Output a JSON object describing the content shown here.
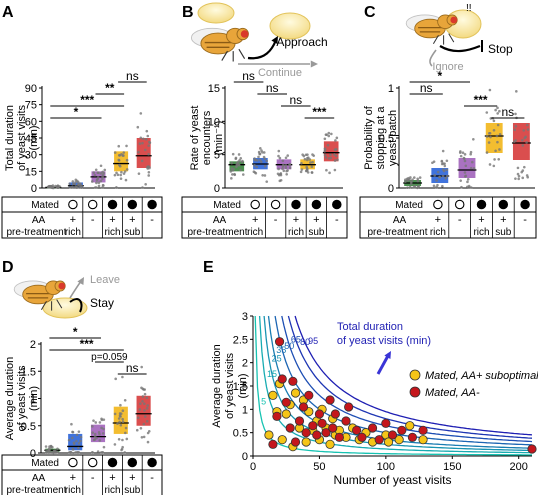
{
  "panel_labels": [
    "A",
    "B",
    "C",
    "D",
    "E"
  ],
  "panels": {
    "A": {
      "ylabel": [
        "Total duration",
        "of yeast visits",
        "(min)"
      ],
      "ylim": [
        0,
        90
      ],
      "yticks": [
        0,
        15,
        30,
        45,
        60,
        75,
        90
      ],
      "sig": [
        {
          "label": "*",
          "from": 0,
          "to": 2
        },
        {
          "label": "***",
          "from": 0,
          "to": 3
        },
        {
          "label": "**",
          "from": 2,
          "to": 3
        },
        {
          "label": "ns",
          "from": 3,
          "to": 4
        }
      ]
    },
    "B": {
      "ylabel": [
        "Rate of yeast",
        "encounters",
        "(min⁻¹)"
      ],
      "ylim": [
        0,
        15
      ],
      "yticks": [
        0,
        5,
        10,
        15
      ],
      "sig": [
        {
          "label": "ns",
          "from": 0,
          "to": 1
        },
        {
          "label": "ns",
          "from": 1,
          "to": 2
        },
        {
          "label": "ns",
          "from": 2,
          "to": 3
        },
        {
          "label": "***",
          "from": 3,
          "to": 4
        }
      ],
      "cartoon": {
        "approach": "Approach",
        "continue": "Continue"
      }
    },
    "C": {
      "ylabel": [
        "Probability of",
        "stopping at a",
        "yeast patch"
      ],
      "ylim": [
        0,
        1
      ],
      "yticks": [
        0,
        0.5,
        1
      ],
      "ytick_labels": [
        "0",
        "0.5",
        "1"
      ],
      "sig": [
        {
          "label": "ns",
          "from": 0,
          "to": 1
        },
        {
          "label": "*",
          "from": 0,
          "to": 2
        },
        {
          "label": "***",
          "from": 2,
          "to": 3
        },
        {
          "label": "ns",
          "from": 3,
          "to": 4
        }
      ],
      "cartoon": {
        "stop": "Stop",
        "ignore": "Ignore",
        "exclaim": "!!"
      }
    },
    "D": {
      "ylabel": [
        "Average duration",
        "of yeast visits",
        "(min)"
      ],
      "ylim": [
        0,
        2
      ],
      "yticks": [
        0,
        0.5,
        1,
        1.5,
        2
      ],
      "ytick_labels": [
        "0",
        "0.5",
        "1",
        "1.5",
        "2"
      ],
      "sig": [
        {
          "label": "*",
          "from": 0,
          "to": 2
        },
        {
          "label": "***",
          "from": 0,
          "to": 3
        },
        {
          "label": "p=0.059",
          "from": 2,
          "to": 3
        },
        {
          "label": "ns",
          "from": 3,
          "to": 4
        }
      ],
      "cartoon": {
        "leave": "Leave",
        "stay": "Stay"
      }
    },
    "E": {
      "ylabel": [
        "Average duration",
        "of yeast visits",
        "(min)"
      ],
      "xlabel": "Number of yeast visits",
      "iso_title": [
        "Total duration",
        "of yeast visits (min)"
      ],
      "iso_labels": [
        "5",
        "15",
        "25",
        "35",
        "50",
        "65",
        "80",
        "95"
      ]
    }
  },
  "condition_table": {
    "row1": "Mated",
    "row2": [
      "AA",
      "pre-treatment"
    ],
    "mated": [
      "empty",
      "empty",
      "filled",
      "filled",
      "filled"
    ],
    "aa_symbol": [
      "+",
      "-",
      "+",
      "+",
      "-"
    ],
    "aa_label": [
      "rich",
      "",
      "rich",
      "sub",
      ""
    ]
  },
  "colors": {
    "group": [
      "#2e7d32",
      "#1e5bd6",
      "#9b59b6",
      "#f1b10c",
      "#d32f2f"
    ],
    "iso_low": "#17c3b2",
    "iso_high": "#1f1fb3",
    "legend_yellow": "#f5c518",
    "legend_red": "#c4161c"
  },
  "chart_data": [
    {
      "type": "box",
      "panel": "A",
      "groups": [
        "mated-, AA+ rich",
        "mated-, AA-",
        "mated+, AA+ rich",
        "mated+, AA+ sub",
        "mated+, AA-"
      ],
      "medians": [
        0.5,
        2,
        10,
        22,
        29
      ],
      "q1": [
        0.2,
        0.5,
        5,
        15,
        18
      ],
      "q3": [
        1,
        5,
        15,
        33,
        45
      ],
      "ylim": [
        0,
        90
      ]
    },
    {
      "type": "box",
      "panel": "B",
      "groups": [
        "mated-, AA+ rich",
        "mated-, AA-",
        "mated+, AA+ rich",
        "mated+, AA+ sub",
        "mated+, AA-"
      ],
      "medians": [
        3.5,
        3.6,
        3.5,
        3.5,
        5.3
      ],
      "q1": [
        2.5,
        2.8,
        2.8,
        2.8,
        4.0
      ],
      "q3": [
        4.0,
        4.5,
        4.3,
        4.3,
        7.0
      ],
      "ylim": [
        0,
        15
      ]
    },
    {
      "type": "box",
      "panel": "C",
      "groups": [
        "mated-, AA+ rich",
        "mated-, AA-",
        "mated+, AA+ rich",
        "mated+, AA+ sub",
        "mated+, AA-"
      ],
      "medians": [
        0.05,
        0.12,
        0.18,
        0.52,
        0.45
      ],
      "q1": [
        0.02,
        0.05,
        0.1,
        0.35,
        0.28
      ],
      "q3": [
        0.08,
        0.2,
        0.3,
        0.65,
        0.65
      ],
      "ylim": [
        0,
        1
      ]
    },
    {
      "type": "box",
      "panel": "D",
      "groups": [
        "mated-, AA+ rich",
        "mated-, AA-",
        "mated+, AA+ rich",
        "mated+, AA+ sub",
        "mated+, AA-"
      ],
      "medians": [
        0.05,
        0.12,
        0.3,
        0.55,
        0.72
      ],
      "q1": [
        0.02,
        0.05,
        0.2,
        0.35,
        0.5
      ],
      "q3": [
        0.08,
        0.35,
        0.52,
        0.85,
        1.05
      ],
      "ylim": [
        0,
        2
      ]
    },
    {
      "type": "scatter",
      "panel": "E",
      "xlim": [
        0,
        210
      ],
      "ylim": [
        0,
        3
      ],
      "xticks": [
        0,
        50,
        100,
        150,
        200
      ],
      "yticks": [
        0,
        0.5,
        1,
        1.5,
        2,
        2.5,
        3
      ],
      "isolines_total_min": [
        5,
        15,
        25,
        35,
        50,
        65,
        80,
        95
      ],
      "series": [
        {
          "name": "Mated, AA+ suboptimal",
          "points": [
            [
              12,
              0.45
            ],
            [
              15,
              1.3
            ],
            [
              18,
              0.95
            ],
            [
              20,
              1.55
            ],
            [
              22,
              0.35
            ],
            [
              25,
              0.9
            ],
            [
              28,
              1.1
            ],
            [
              30,
              0.2
            ],
            [
              32,
              1.35
            ],
            [
              35,
              0.6
            ],
            [
              38,
              1.2
            ],
            [
              40,
              0.3
            ],
            [
              42,
              0.95
            ],
            [
              45,
              0.55
            ],
            [
              48,
              0.75
            ],
            [
              50,
              0.35
            ],
            [
              52,
              1.0
            ],
            [
              55,
              0.6
            ],
            [
              58,
              0.25
            ],
            [
              60,
              0.8
            ],
            [
              62,
              0.45
            ],
            [
              65,
              0.55
            ],
            [
              70,
              0.4
            ],
            [
              75,
              0.6
            ],
            [
              80,
              0.35
            ],
            [
              85,
              0.5
            ],
            [
              90,
              0.3
            ],
            [
              100,
              0.45
            ],
            [
              102,
              0.3
            ],
            [
              110,
              0.35
            ],
            [
              118,
              0.65
            ],
            [
              128,
              0.35
            ]
          ]
        },
        {
          "name": "Mated, AA-",
          "points": [
            [
              15,
              0.25
            ],
            [
              18,
              0.85
            ],
            [
              20,
              2.45
            ],
            [
              22,
              1.65
            ],
            [
              25,
              1.15
            ],
            [
              28,
              0.6
            ],
            [
              30,
              1.6
            ],
            [
              32,
              0.3
            ],
            [
              35,
              0.75
            ],
            [
              38,
              1.05
            ],
            [
              40,
              0.5
            ],
            [
              42,
              1.3
            ],
            [
              45,
              0.65
            ],
            [
              48,
              0.45
            ],
            [
              50,
              0.9
            ],
            [
              52,
              0.7
            ],
            [
              55,
              0.5
            ],
            [
              58,
              1.2
            ],
            [
              60,
              0.6
            ],
            [
              62,
              0.9
            ],
            [
              65,
              0.4
            ],
            [
              70,
              0.75
            ],
            [
              72,
              1.05
            ],
            [
              78,
              0.55
            ],
            [
              82,
              0.4
            ],
            [
              90,
              0.6
            ],
            [
              95,
              0.35
            ],
            [
              100,
              0.7
            ],
            [
              105,
              0.45
            ],
            [
              112,
              0.55
            ],
            [
              120,
              0.4
            ],
            [
              128,
              0.55
            ],
            [
              210,
              0.15
            ]
          ]
        }
      ]
    }
  ]
}
